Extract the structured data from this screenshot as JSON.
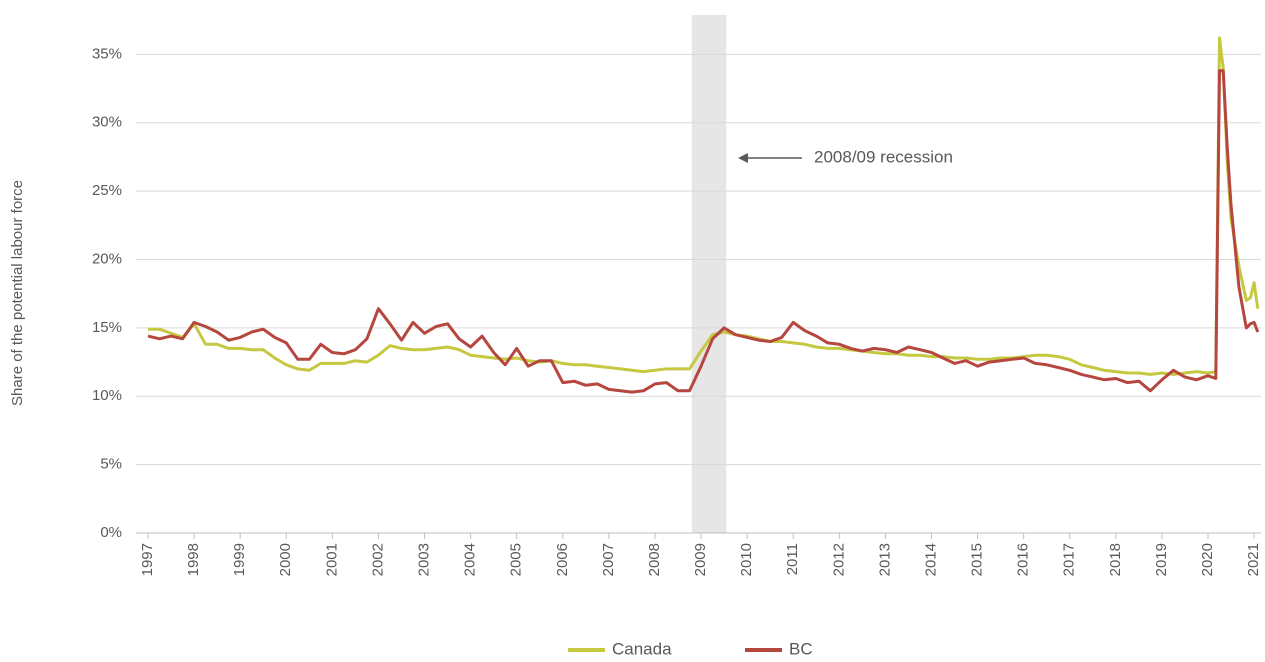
{
  "chart_data": {
    "type": "line",
    "y_label": "Share of the potential labour force",
    "annotation": "2008/09 recession",
    "recession": [
      2008.8,
      2009.55
    ],
    "x": [
      1997.0,
      1997.25,
      1997.5,
      1997.75,
      1998.0,
      1998.25,
      1998.5,
      1998.75,
      1999.0,
      1999.25,
      1999.5,
      1999.75,
      2000.0,
      2000.25,
      2000.5,
      2000.75,
      2001.0,
      2001.25,
      2001.5,
      2001.75,
      2002.0,
      2002.25,
      2002.5,
      2002.75,
      2003.0,
      2003.25,
      2003.5,
      2003.75,
      2004.0,
      2004.25,
      2004.5,
      2004.75,
      2005.0,
      2005.25,
      2005.5,
      2005.75,
      2006.0,
      2006.25,
      2006.5,
      2006.75,
      2007.0,
      2007.25,
      2007.5,
      2007.75,
      2008.0,
      2008.25,
      2008.5,
      2008.75,
      2009.0,
      2009.25,
      2009.5,
      2009.75,
      2010.0,
      2010.25,
      2010.5,
      2010.75,
      2011.0,
      2011.25,
      2011.5,
      2011.75,
      2012.0,
      2012.25,
      2012.5,
      2012.75,
      2013.0,
      2013.25,
      2013.5,
      2013.75,
      2014.0,
      2014.25,
      2014.5,
      2014.75,
      2015.0,
      2015.25,
      2015.5,
      2015.75,
      2016.0,
      2016.25,
      2016.5,
      2016.75,
      2017.0,
      2017.25,
      2017.5,
      2017.75,
      2018.0,
      2018.25,
      2018.5,
      2018.75,
      2019.0,
      2019.25,
      2019.5,
      2019.75,
      2020.0,
      2020.17,
      2020.25,
      2020.33,
      2020.42,
      2020.5,
      2020.67,
      2020.83,
      2020.92,
      2021.0,
      2021.08
    ],
    "series": [
      {
        "name": "Canada",
        "color": "#c5c840",
        "values": [
          14.9,
          14.9,
          14.6,
          14.3,
          15.3,
          13.8,
          13.8,
          13.5,
          13.5,
          13.4,
          13.4,
          12.8,
          12.3,
          12.0,
          11.9,
          12.4,
          12.4,
          12.4,
          12.6,
          12.5,
          13.0,
          13.7,
          13.5,
          13.4,
          13.4,
          13.5,
          13.6,
          13.4,
          13.0,
          12.9,
          12.8,
          12.7,
          12.8,
          12.6,
          12.5,
          12.6,
          12.4,
          12.3,
          12.3,
          12.2,
          12.1,
          12.0,
          11.9,
          11.8,
          11.9,
          12.0,
          12.0,
          12.0,
          13.3,
          14.5,
          14.7,
          14.5,
          14.4,
          14.2,
          14.0,
          14.0,
          13.9,
          13.8,
          13.6,
          13.5,
          13.5,
          13.4,
          13.3,
          13.2,
          13.1,
          13.1,
          13.0,
          13.0,
          12.9,
          12.9,
          12.8,
          12.8,
          12.7,
          12.7,
          12.8,
          12.8,
          12.9,
          13.0,
          13.0,
          12.9,
          12.7,
          12.3,
          12.1,
          11.9,
          11.8,
          11.7,
          11.7,
          11.6,
          11.7,
          11.6,
          11.7,
          11.8,
          11.7,
          11.8,
          36.2,
          34.0,
          27.0,
          23.0,
          19.5,
          17.0,
          17.2,
          18.3,
          16.4
        ]
      },
      {
        "name": "BC",
        "color": "#b5473f",
        "values": [
          14.4,
          14.2,
          14.4,
          14.2,
          15.4,
          15.1,
          14.7,
          14.1,
          14.3,
          14.7,
          14.9,
          14.3,
          13.9,
          12.7,
          12.7,
          13.8,
          13.2,
          13.1,
          13.4,
          14.2,
          16.4,
          15.3,
          14.1,
          15.4,
          14.6,
          15.1,
          15.3,
          14.2,
          13.6,
          14.4,
          13.2,
          12.3,
          13.5,
          12.2,
          12.6,
          12.6,
          11.0,
          11.1,
          10.8,
          10.9,
          10.5,
          10.4,
          10.3,
          10.4,
          10.9,
          11.0,
          10.4,
          10.4,
          12.2,
          14.2,
          15.0,
          14.5,
          14.3,
          14.1,
          14.0,
          14.3,
          15.4,
          14.8,
          14.4,
          13.9,
          13.8,
          13.5,
          13.3,
          13.5,
          13.4,
          13.2,
          13.6,
          13.4,
          13.2,
          12.8,
          12.4,
          12.6,
          12.2,
          12.5,
          12.6,
          12.7,
          12.8,
          12.4,
          12.3,
          12.1,
          11.9,
          11.6,
          11.4,
          11.2,
          11.3,
          11.0,
          11.1,
          10.4,
          11.2,
          11.9,
          11.4,
          11.2,
          11.5,
          11.3,
          33.8,
          33.8,
          28.0,
          24.0,
          18.0,
          15.0,
          15.3,
          15.4,
          14.7
        ]
      }
    ],
    "xlim": [
      1997,
      2021.15
    ],
    "xticks": [
      1997,
      1998,
      1999,
      2000,
      2001,
      2002,
      2003,
      2004,
      2005,
      2006,
      2007,
      2008,
      2009,
      2010,
      2011,
      2012,
      2013,
      2014,
      2015,
      2016,
      2017,
      2018,
      2019,
      2020,
      2021
    ],
    "ylim": [
      0,
      37
    ],
    "yticks": [
      {
        "value": 0,
        "label": "0%"
      },
      {
        "value": 5,
        "label": "5%"
      },
      {
        "value": 10,
        "label": "10%"
      },
      {
        "value": 15,
        "label": "15%"
      },
      {
        "value": 20,
        "label": "20%"
      },
      {
        "value": 25,
        "label": "25%"
      },
      {
        "value": 30,
        "label": "30%"
      },
      {
        "value": 35,
        "label": "35%"
      }
    ],
    "grid": true,
    "legend": "bottom"
  }
}
